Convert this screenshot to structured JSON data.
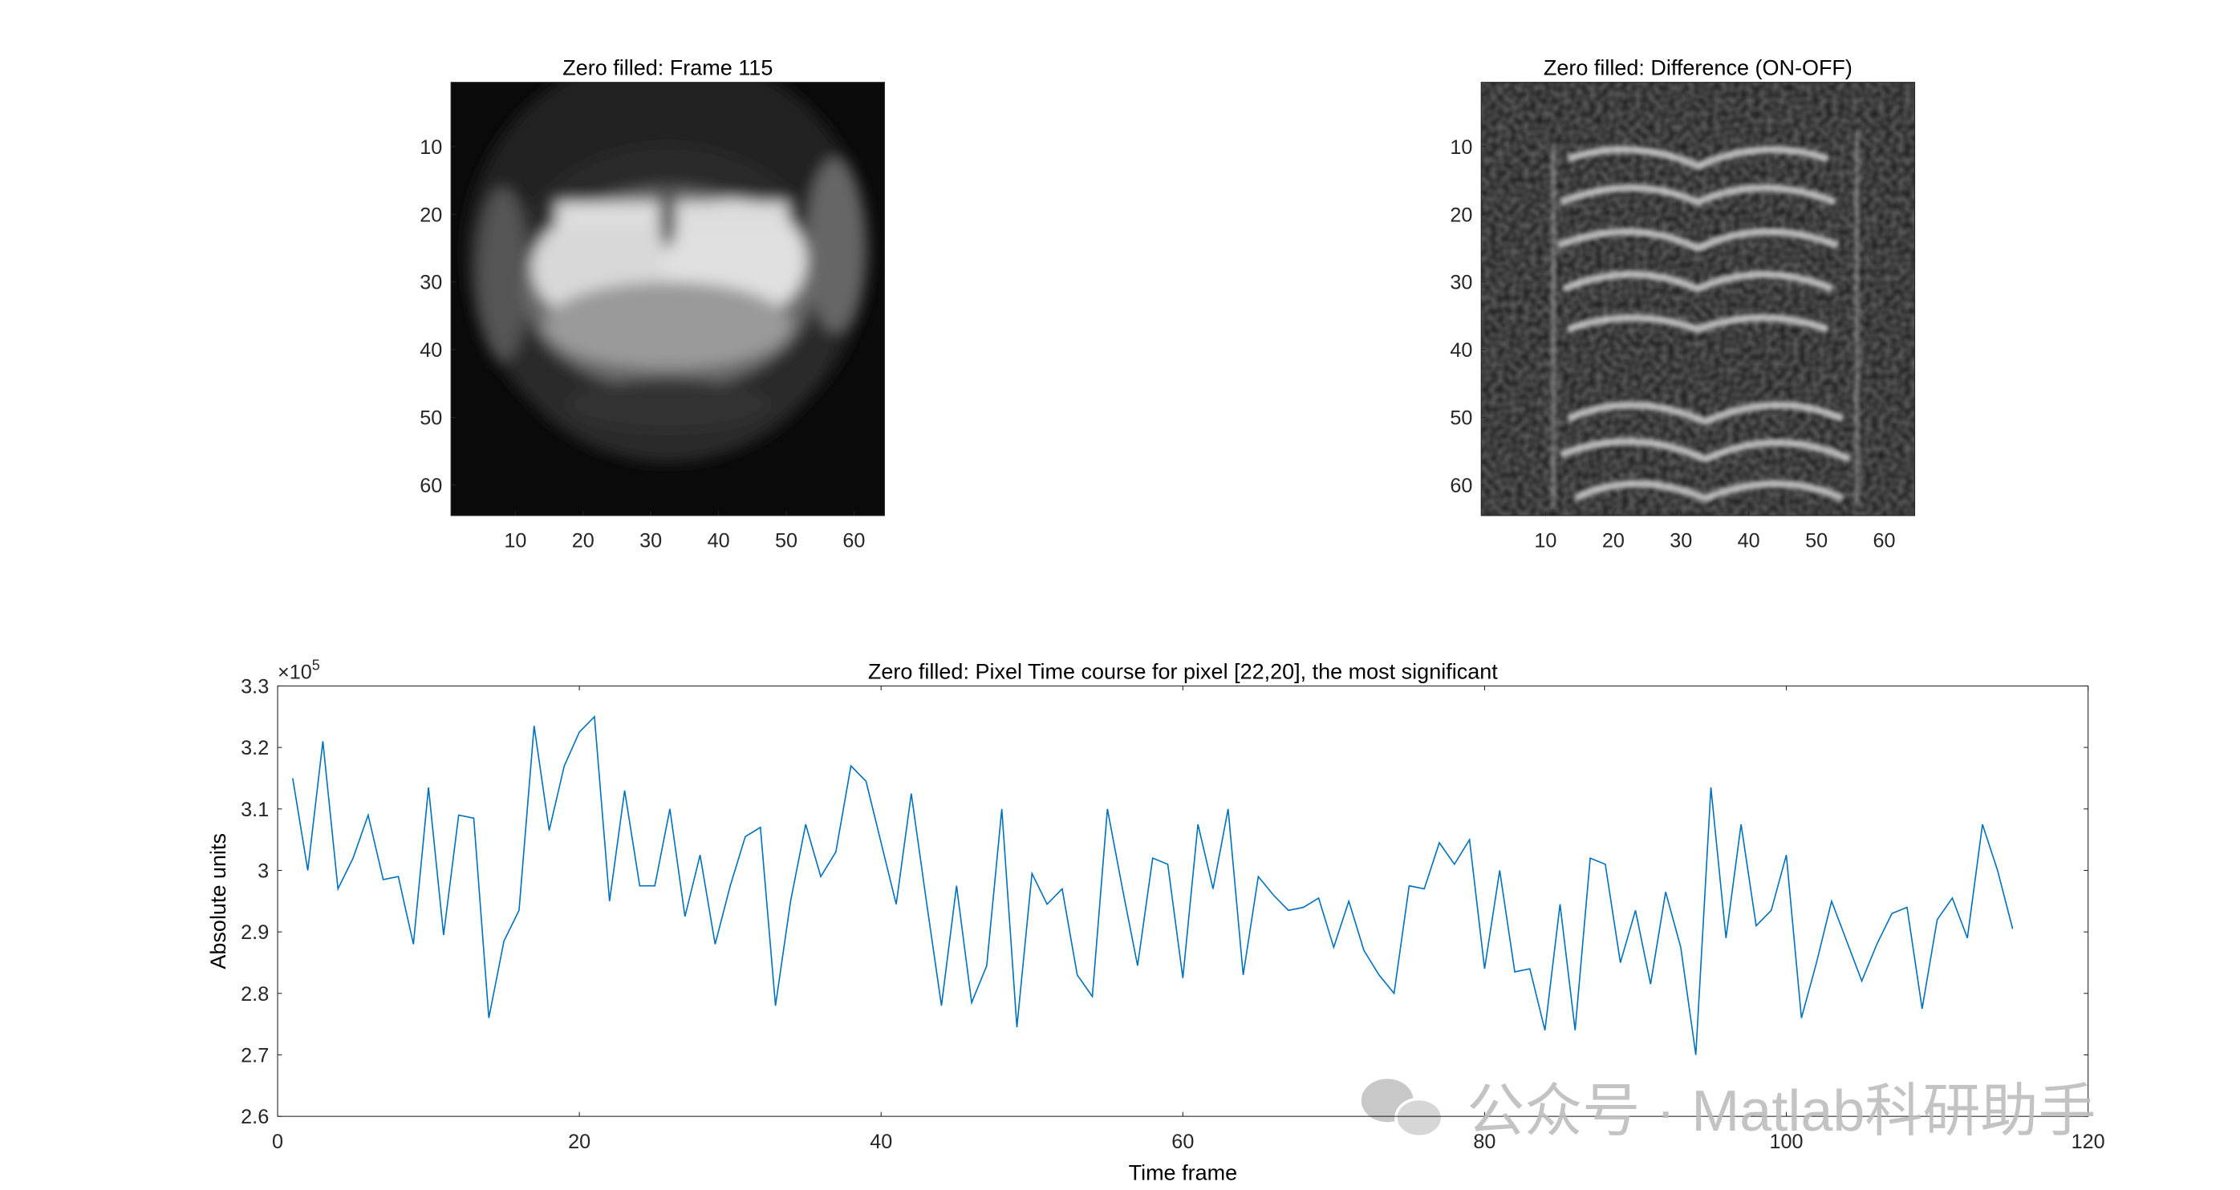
{
  "chart_data": [
    {
      "type": "image",
      "title": "Zero filled: Frame 115",
      "colormap": "gray",
      "xlim": [
        0.5,
        64.5
      ],
      "ylim": [
        0.5,
        64.5
      ],
      "xticks": [
        10,
        20,
        30,
        40,
        50,
        60
      ],
      "yticks": [
        10,
        20,
        30,
        40,
        50,
        60
      ]
    },
    {
      "type": "image",
      "title": "Zero filled: Difference (ON-OFF)",
      "colormap": "gray",
      "xlim": [
        0.5,
        64.5
      ],
      "ylim": [
        0.5,
        64.5
      ],
      "xticks": [
        10,
        20,
        30,
        40,
        50,
        60
      ],
      "yticks": [
        10,
        20,
        30,
        40,
        50,
        60
      ]
    },
    {
      "type": "line",
      "title": "Zero filled: Pixel Time course for pixel [22,20], the most significant",
      "x_label": "Time frame",
      "y_label": "Absolute units",
      "y_multiplier": {
        "base": "×10",
        "exponent": "5"
      },
      "color": "#0072bd",
      "xlim": [
        0,
        120
      ],
      "ylim": [
        2.6,
        3.3
      ],
      "xticks": [
        0,
        20,
        40,
        60,
        80,
        100,
        120
      ],
      "yticks": [
        2.6,
        2.7,
        2.8,
        2.9,
        3,
        3.1,
        3.2,
        3.3
      ],
      "x": [
        1,
        2,
        3,
        4,
        5,
        6,
        7,
        8,
        9,
        10,
        11,
        12,
        13,
        14,
        15,
        16,
        17,
        18,
        19,
        20,
        21,
        22,
        23,
        24,
        25,
        26,
        27,
        28,
        29,
        30,
        31,
        32,
        33,
        34,
        35,
        36,
        37,
        38,
        39,
        40,
        41,
        42,
        43,
        44,
        45,
        46,
        47,
        48,
        49,
        50,
        51,
        52,
        53,
        54,
        55,
        56,
        57,
        58,
        59,
        60,
        61,
        62,
        63,
        64,
        65,
        66,
        67,
        68,
        69,
        70,
        71,
        72,
        73,
        74,
        75,
        76,
        77,
        78,
        79,
        80,
        81,
        82,
        83,
        84,
        85,
        86,
        87,
        88,
        89,
        90,
        91,
        92,
        93,
        94,
        95,
        96,
        97,
        98,
        99,
        100,
        101,
        102,
        103,
        104,
        105,
        106,
        107,
        108,
        109,
        110,
        111,
        112,
        113,
        114,
        115
      ],
      "values": [
        3.15,
        3.0,
        3.21,
        2.97,
        3.02,
        3.09,
        2.985,
        2.99,
        2.88,
        3.135,
        2.895,
        3.09,
        3.085,
        2.76,
        2.885,
        2.935,
        3.235,
        3.065,
        3.17,
        3.225,
        3.25,
        2.95,
        3.13,
        2.975,
        2.975,
        3.1,
        2.925,
        3.025,
        2.88,
        2.975,
        3.055,
        3.07,
        2.78,
        2.95,
        3.075,
        2.99,
        3.03,
        3.17,
        3.145,
        3.045,
        2.945,
        3.125,
        2.95,
        2.78,
        2.975,
        2.785,
        2.845,
        3.1,
        2.745,
        2.995,
        2.945,
        2.97,
        2.83,
        2.795,
        3.1,
        2.97,
        2.845,
        3.02,
        3.01,
        2.825,
        3.075,
        2.97,
        3.1,
        2.83,
        2.99,
        2.96,
        2.935,
        2.94,
        2.955,
        2.875,
        2.95,
        2.87,
        2.83,
        2.8,
        2.975,
        2.97,
        3.045,
        3.01,
        3.05,
        2.84,
        3.0,
        2.835,
        2.84,
        2.74,
        2.945,
        2.74,
        3.02,
        3.01,
        2.85,
        2.935,
        2.815,
        2.965,
        2.875,
        2.7,
        3.135,
        2.89,
        3.075,
        2.91,
        2.935,
        3.025,
        2.76,
        2.85,
        2.95,
        2.885,
        2.82,
        2.88,
        2.93,
        2.94,
        2.775,
        2.92,
        2.955,
        2.89,
        3.075,
        3.0,
        2.905
      ]
    },
    {
      "type": "watermark",
      "text": "公众号 · Matlab科研助手"
    }
  ]
}
